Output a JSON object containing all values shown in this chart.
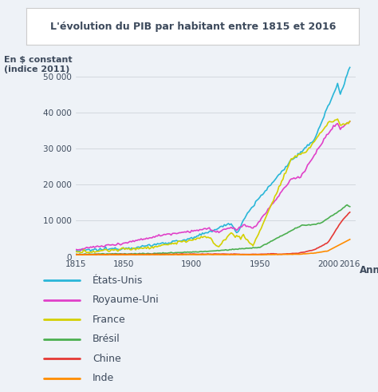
{
  "title": "L'évolution du PIB par habitant entre 1815 et 2016",
  "ylabel": "En $ constant\n(indice 2011)",
  "xlabel": "Années",
  "background_color": "#eef2f7",
  "title_box_color": "#ffffff",
  "ylim": [
    0,
    56000
  ],
  "xlim": [
    1815,
    2020
  ],
  "yticks": [
    0,
    10000,
    20000,
    30000,
    40000,
    50000
  ],
  "ytick_labels": [
    "0",
    "10 000",
    "20 000",
    "30 000",
    "40 000",
    "50 000"
  ],
  "xticks": [
    1815,
    1850,
    1900,
    1950,
    2000,
    2016
  ],
  "series_colors": {
    "etats_unis": "#29b6d8",
    "royaume_uni": "#e040c8",
    "france": "#d4d000",
    "bresil": "#4caf50",
    "chine": "#e53935",
    "inde": "#ff8c00"
  },
  "text_color": "#3d4a5c",
  "axis_color": "#aaaaaa",
  "legend_items": [
    [
      "États-Unis",
      "#29b6d8"
    ],
    [
      "Royaume-Uni",
      "#e040c8"
    ],
    [
      "France",
      "#d4d000"
    ],
    [
      "Brésil",
      "#4caf50"
    ],
    [
      "Chine",
      "#e53935"
    ],
    [
      "Inde",
      "#ff8c00"
    ]
  ]
}
